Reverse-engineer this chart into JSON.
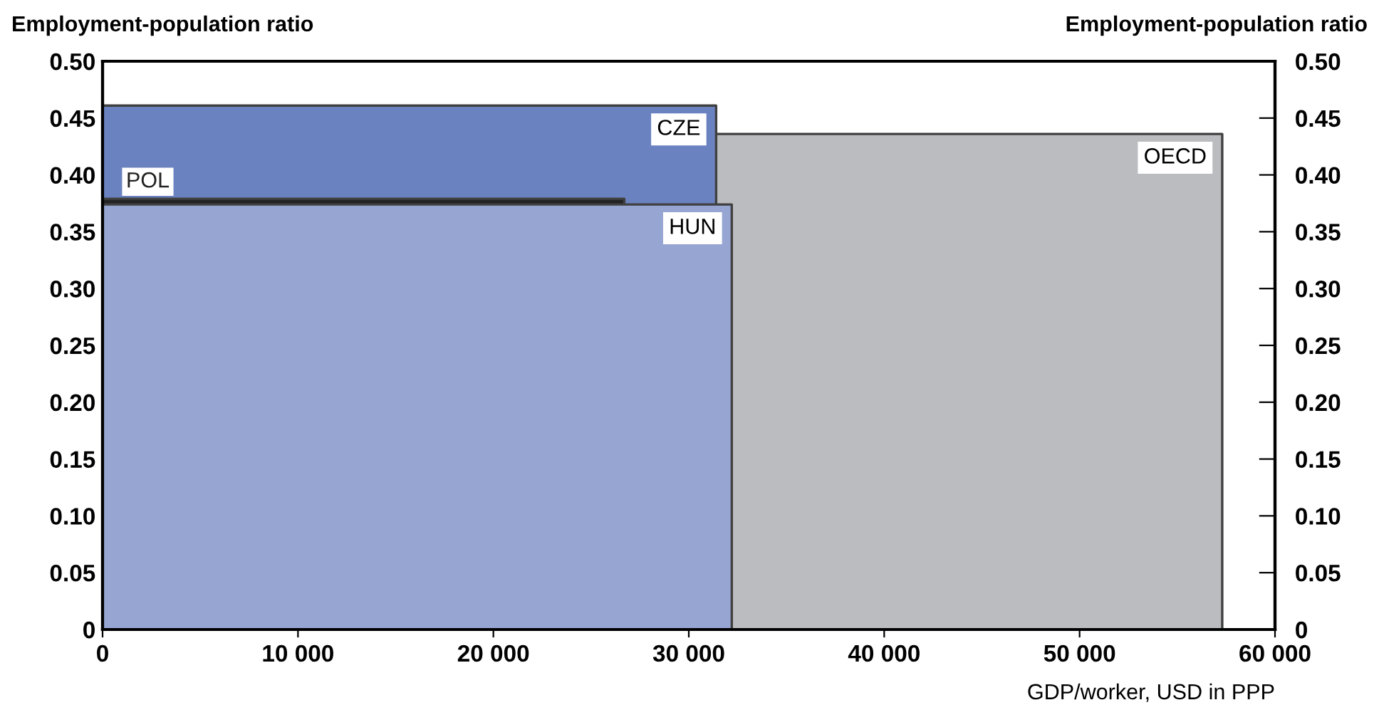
{
  "chart_data": {
    "type": "area",
    "ylabel": "Employment-population ratio",
    "y2label": "Employment-population ratio",
    "xlabel": "GDP/worker, USD in PPP",
    "series": [
      {
        "name": "OECD",
        "color": "#bbbcc0",
        "x": [
          0,
          57300
        ],
        "values": [
          0.436,
          0.436
        ]
      },
      {
        "name": "CZE",
        "color": "#6a82bf",
        "x": [
          0,
          31400
        ],
        "values": [
          0.461,
          0.461
        ]
      },
      {
        "name": "POL",
        "color": "#222222",
        "x": [
          0,
          26700
        ],
        "values": [
          0.379,
          0.379
        ]
      },
      {
        "name": "HUN",
        "color": "#96a5d2",
        "x": [
          0,
          32200
        ],
        "values": [
          0.374,
          0.374
        ]
      }
    ],
    "xlim": [
      0,
      60000
    ],
    "xticks": [
      0,
      {
        "value": 10000,
        "label": "10 000"
      },
      {
        "value": 20000,
        "label": "20 000"
      },
      {
        "value": 30000,
        "label": "30 000"
      },
      {
        "value": 40000,
        "label": "40 000"
      },
      {
        "value": 50000,
        "label": "50 000"
      },
      {
        "value": 60000,
        "label": "60 000"
      }
    ],
    "ylim": [
      0,
      0.5
    ],
    "yticks": [
      0,
      {
        "value": 0.05,
        "label": "0.05"
      },
      {
        "value": 0.1,
        "label": "0.10"
      },
      {
        "value": 0.15,
        "label": "0.15"
      },
      {
        "value": 0.2,
        "label": "0.20"
      },
      {
        "value": 0.25,
        "label": "0.25"
      },
      {
        "value": 0.3,
        "label": "0.30"
      },
      {
        "value": 0.35,
        "label": "0.35"
      },
      {
        "value": 0.4,
        "label": "0.40"
      },
      {
        "value": 0.45,
        "label": "0.45"
      },
      {
        "value": 0.5,
        "label": "0.50"
      }
    ],
    "y2lim": [
      0,
      0.5
    ],
    "y2ticks": [
      0,
      {
        "value": 0.05,
        "label": "0.05"
      },
      {
        "value": 0.1,
        "label": "0.10"
      },
      {
        "value": 0.15,
        "label": "0.15"
      },
      {
        "value": 0.2,
        "label": "0.20"
      },
      {
        "value": 0.25,
        "label": "0.25"
      },
      {
        "value": 0.3,
        "label": "0.30"
      },
      {
        "value": 0.35,
        "label": "0.35"
      },
      {
        "value": 0.4,
        "label": "0.40"
      },
      {
        "value": 0.45,
        "label": "0.45"
      },
      {
        "value": 0.5,
        "label": "0.50"
      }
    ],
    "grid": false,
    "legend": false
  }
}
